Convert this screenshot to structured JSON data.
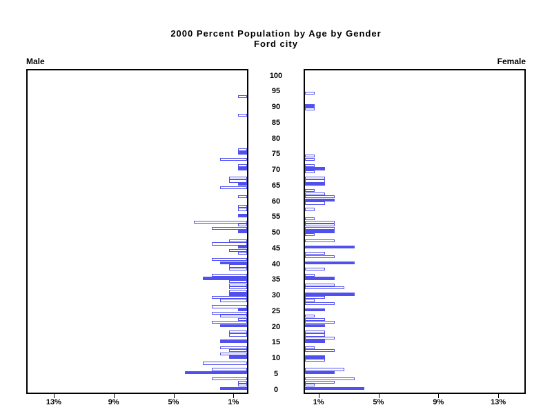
{
  "title": {
    "line1": "2000 Percent Population by Age by Gender",
    "line2": "Ford city"
  },
  "panel_labels": {
    "male": "Male",
    "female": "Female"
  },
  "colors": {
    "bar_blue": "#5050ef",
    "axis_black": "#000000",
    "background": "#ffffff"
  },
  "axis": {
    "age_tick_step": 5,
    "age_ticks": [
      0,
      5,
      10,
      15,
      20,
      25,
      30,
      35,
      40,
      45,
      50,
      55,
      60,
      65,
      70,
      75,
      80,
      85,
      90,
      95,
      100
    ],
    "male_pct_ticks": [
      {
        "label": "13%",
        "pct": 13
      },
      {
        "label": "9%",
        "pct": 9
      },
      {
        "label": "5%",
        "pct": 5
      },
      {
        "label": "1%",
        "pct": 1
      }
    ],
    "female_pct_ticks": [
      {
        "label": "1%",
        "pct": 1
      },
      {
        "label": "5%",
        "pct": 5
      },
      {
        "label": "9%",
        "pct": 9
      },
      {
        "label": "13%",
        "pct": 13
      }
    ],
    "pct_max": 14.8
  },
  "chart_data": {
    "type": "bar",
    "subtype": "population-pyramid",
    "title": "2000 Percent Population by Age by Gender",
    "subtitle": "Ford city",
    "xlabel_left": "Male",
    "xlabel_right": "Female",
    "ylabel": "Age (single years, labels every 5)",
    "x_units": "percent of population",
    "xlim_each_side": [
      0,
      14.8
    ],
    "grid": false,
    "legend": "none",
    "highlight_rule": "bars for ages divisible by 5 are filled solid blue; all other ages are white with blue outline",
    "ages": "index of each array entry = age in years, 0 through 100",
    "male_pct_by_age": [
      1.78,
      0.59,
      0.59,
      2.37,
      0,
      4.15,
      2.37,
      0,
      2.97,
      0,
      1.19,
      1.78,
      1.19,
      1.78,
      0,
      1.78,
      0,
      1.19,
      1.19,
      0,
      1.78,
      2.37,
      0.59,
      1.78,
      2.37,
      0.59,
      2.37,
      0,
      1.78,
      2.37,
      1.19,
      1.19,
      1.19,
      1.19,
      1.19,
      2.97,
      2.37,
      0,
      1.19,
      1.19,
      1.78,
      2.37,
      0,
      0.59,
      1.19,
      0.59,
      2.37,
      1.19,
      0,
      0,
      0.59,
      2.37,
      0.59,
      3.56,
      0,
      0.59,
      0,
      0.59,
      0.59,
      0,
      0,
      0.59,
      0,
      0,
      1.78,
      0.59,
      1.19,
      1.19,
      0,
      0,
      0.59,
      0.59,
      0,
      1.78,
      0,
      0.59,
      0.59,
      0,
      0,
      0,
      0,
      0,
      0,
      0,
      0,
      0,
      0,
      0.59,
      0,
      0,
      0,
      0,
      0,
      0.59,
      0,
      0,
      0,
      0,
      0,
      0,
      0
    ],
    "female_pct_by_age": [
      3.96,
      0.66,
      1.98,
      3.3,
      0,
      1.98,
      2.64,
      0,
      0,
      1.32,
      1.32,
      0,
      1.98,
      0.66,
      0,
      1.32,
      1.98,
      1.32,
      1.32,
      0,
      1.32,
      1.98,
      1.32,
      0.66,
      0,
      1.32,
      0,
      1.98,
      0.66,
      1.32,
      3.3,
      0,
      2.64,
      1.98,
      0,
      1.98,
      0.66,
      0,
      1.32,
      0,
      3.3,
      0,
      1.98,
      1.32,
      0,
      3.3,
      0,
      1.98,
      0,
      0.66,
      1.98,
      1.98,
      1.98,
      1.98,
      0.66,
      0,
      0,
      0.66,
      0,
      1.32,
      1.98,
      1.98,
      1.32,
      0.66,
      0,
      1.32,
      1.32,
      1.32,
      0,
      0.66,
      1.32,
      0.66,
      0,
      0.66,
      0.66,
      0,
      0,
      0,
      0,
      0,
      0,
      0,
      0,
      0,
      0,
      0,
      0,
      0,
      0,
      0.66,
      0.66,
      0,
      0,
      0,
      0.66,
      0,
      0,
      0,
      0,
      0,
      0
    ]
  }
}
